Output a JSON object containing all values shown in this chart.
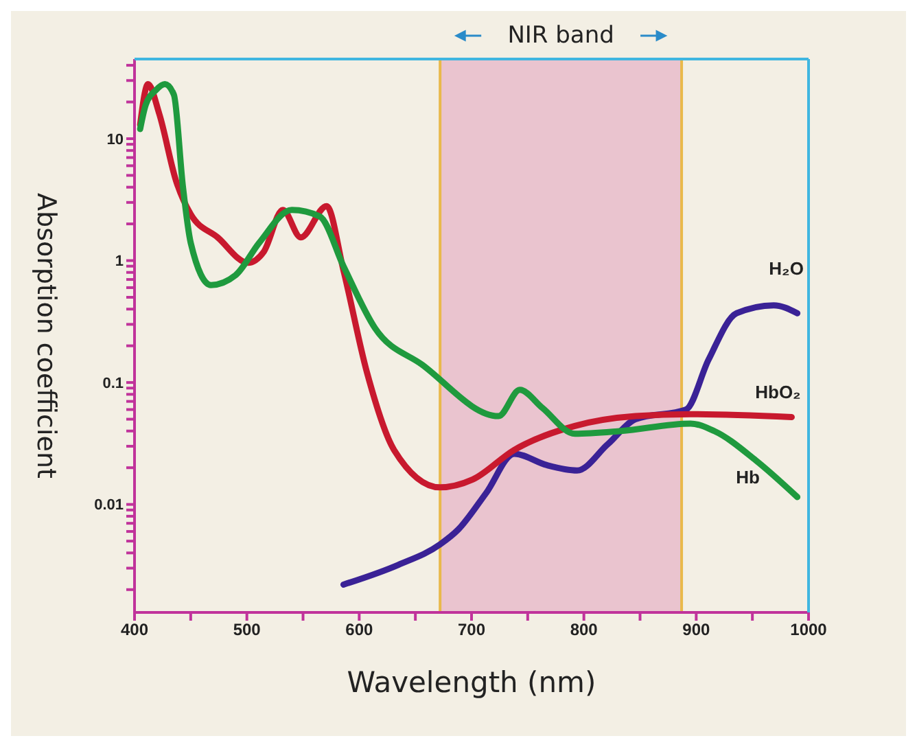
{
  "chart_data": {
    "type": "line",
    "xlabel": "Wavelength (nm)",
    "ylabel": "Absorption coefficient",
    "log": "y",
    "marker": "none",
    "line_style": "solid",
    "xlim": [
      400,
      1000
    ],
    "xticks": [
      400,
      {
        "value": 450,
        "label": null
      },
      500,
      {
        "value": 550,
        "label": null
      },
      600,
      {
        "value": 650,
        "label": null
      },
      700,
      {
        "value": 750,
        "label": null
      },
      800,
      {
        "value": 850,
        "label": null
      },
      900,
      {
        "value": 950,
        "label": null
      },
      1000
    ],
    "ylim": [
      0.0013,
      45
    ],
    "yticks": [
      {
        "value": 0.002,
        "label": null
      },
      {
        "value": 0.003,
        "label": null
      },
      {
        "value": 0.004,
        "label": null
      },
      {
        "value": 0.005,
        "label": null
      },
      {
        "value": 0.006,
        "label": null
      },
      {
        "value": 0.007,
        "label": null
      },
      {
        "value": 0.008,
        "label": null
      },
      {
        "value": 0.009,
        "label": null
      },
      0.01,
      {
        "value": 0.02,
        "label": null
      },
      {
        "value": 0.03,
        "label": null
      },
      {
        "value": 0.04,
        "label": null
      },
      {
        "value": 0.05,
        "label": null
      },
      {
        "value": 0.06,
        "label": null
      },
      {
        "value": 0.07,
        "label": null
      },
      {
        "value": 0.08,
        "label": null
      },
      {
        "value": 0.09,
        "label": null
      },
      0.1,
      {
        "value": 0.2,
        "label": null
      },
      {
        "value": 0.3,
        "label": null
      },
      {
        "value": 0.4,
        "label": null
      },
      {
        "value": 0.5,
        "label": null
      },
      {
        "value": 0.6,
        "label": null
      },
      {
        "value": 0.7,
        "label": null
      },
      {
        "value": 0.8,
        "label": null
      },
      {
        "value": 0.9,
        "label": null
      },
      1,
      {
        "value": 2,
        "label": null
      },
      {
        "value": 3,
        "label": null
      },
      {
        "value": 4,
        "label": null
      },
      {
        "value": 5,
        "label": null
      },
      {
        "value": 6,
        "label": null
      },
      {
        "value": 7,
        "label": null
      },
      {
        "value": 8,
        "label": null
      },
      {
        "value": 9,
        "label": null
      },
      10,
      {
        "value": 20,
        "label": null
      },
      {
        "value": 30,
        "label": null
      },
      {
        "value": 40,
        "label": null
      }
    ],
    "bands": [
      {
        "axis": "x",
        "from": 672,
        "to": 887,
        "label": "NIR band",
        "color": "#e8bccb"
      }
    ],
    "series": [
      {
        "name": "H₂O",
        "color": "#3a2296",
        "x": [
          586,
          635,
          672,
          688,
          713,
          738,
          767,
          794,
          821,
          846,
          891,
          911,
          936,
          969,
          990
        ],
        "values": [
          0.0022,
          0.0032,
          0.0047,
          0.0062,
          0.0124,
          0.026,
          0.021,
          0.019,
          0.031,
          0.05,
          0.06,
          0.154,
          0.37,
          0.43,
          0.37
        ]
      },
      {
        "name": "HbO₂",
        "color": "#c8192e",
        "x": [
          405,
          412,
          422,
          437,
          450,
          474,
          501,
          515,
          532,
          548,
          571,
          586,
          607,
          631,
          672,
          701,
          738,
          792,
          846,
          895,
          985
        ],
        "values": [
          13,
          28,
          16,
          4.5,
          2.4,
          1.55,
          0.96,
          1.18,
          2.6,
          1.55,
          2.8,
          0.83,
          0.12,
          0.028,
          0.0138,
          0.016,
          0.028,
          0.044,
          0.053,
          0.055,
          0.052
        ]
      },
      {
        "name": "Hb",
        "color": "#1f9a3e",
        "x": [
          405,
          410,
          419,
          427,
          435,
          443,
          450,
          468,
          490,
          511,
          540,
          565,
          586,
          614,
          656,
          724,
          743,
          763,
          792,
          833,
          895,
          916,
          953,
          990
        ],
        "values": [
          12,
          19,
          25,
          28,
          23,
          4.1,
          1.4,
          0.63,
          0.76,
          1.4,
          2.6,
          2.3,
          0.9,
          0.28,
          0.14,
          0.053,
          0.087,
          0.062,
          0.038,
          0.04,
          0.046,
          0.04,
          0.023,
          0.0115
        ]
      }
    ]
  }
}
